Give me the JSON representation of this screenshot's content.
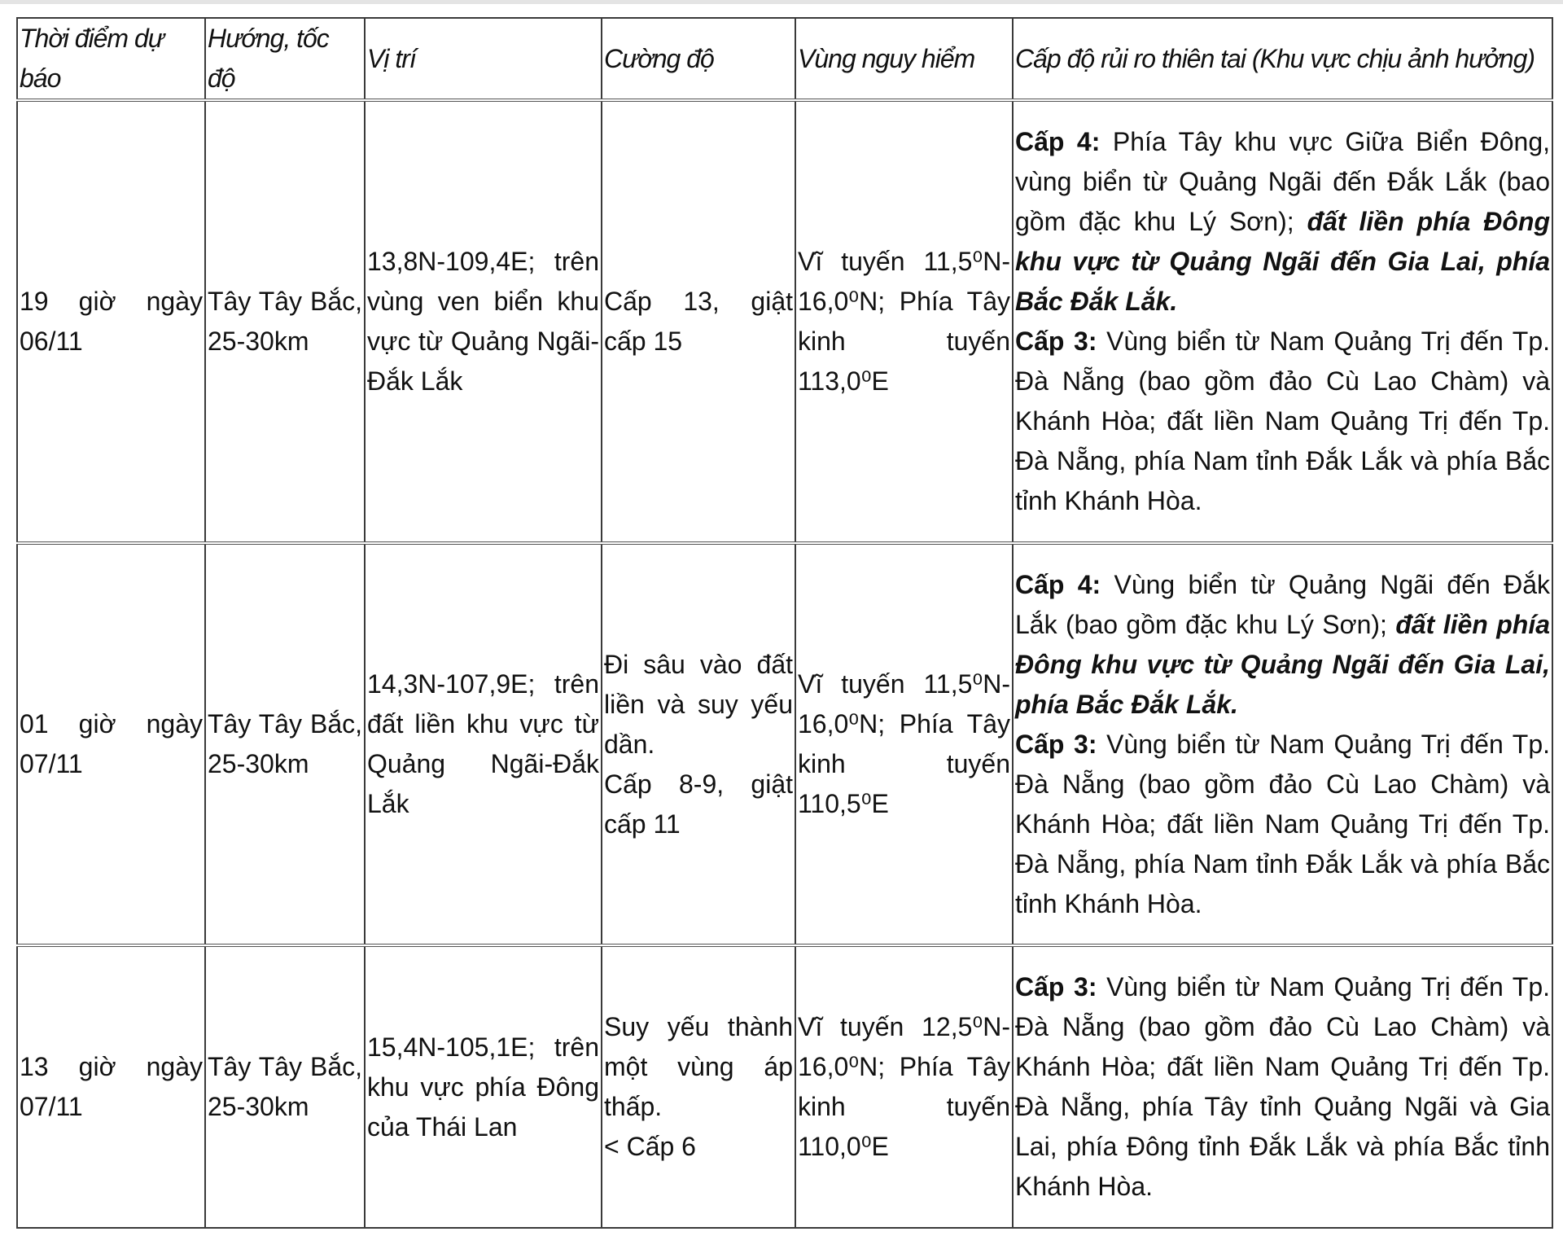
{
  "header": {
    "time": "Thời điểm dự báo",
    "direction": "Hướng, tốc độ",
    "position": "Vị trí",
    "intensity": "Cường độ",
    "danger_zone": "Vùng nguy hiểm",
    "risk": "Cấp độ rủi ro thiên tai (Khu vực chịu ảnh hưởng)"
  },
  "rows": [
    {
      "time": "19 giờ ngày 06/11",
      "direction": "Tây Tây Bắc, 25-30km",
      "position": "13,8N-109,4E; trên vùng ven biển khu vực từ Quảng Ngãi-Đắk Lắk",
      "intensity": "Cấp 13, giật cấp 15",
      "danger_zone": "Vĩ tuyến 11,5⁰N-16,0⁰N; Phía Tây kinh tuyến 113,0⁰E",
      "risk": [
        {
          "style": "b",
          "text": "Cấp 4:"
        },
        {
          "style": "n",
          "text": " Phía Tây khu vực Giữa Biển Đông, vùng biển từ Quảng Ngãi đến Đắk Lắk (bao gồm đặc khu Lý Sơn); "
        },
        {
          "style": "bi",
          "text": "đất liền phía Đông khu vực từ Quảng Ngãi đến Gia Lai, phía Bắc Đắk Lắk."
        },
        {
          "style": "b",
          "text": "\n Cấp 3:"
        },
        {
          "style": "n",
          "text": " Vùng biển từ Nam Quảng Trị đến Tp. Đà Nẵng (bao gồm đảo Cù Lao Chàm) và Khánh Hòa; đất liền Nam Quảng Trị đến Tp. Đà Nẵng, phía Nam tỉnh Đắk Lắk và phía Bắc tỉnh Khánh Hòa."
        }
      ]
    },
    {
      "time": "01 giờ ngày 07/11",
      "direction": "Tây Tây Bắc, 25-30km",
      "position": "14,3N-107,9E; trên đất liền khu vực từ Quảng Ngãi-Đắk Lắk",
      "intensity": "Đi sâu vào đất liền và suy yếu dần.\n Cấp 8-9, giật cấp 11",
      "danger_zone": "Vĩ tuyến 11,5⁰N-16,0⁰N; Phía Tây kinh tuyến 110,5⁰E",
      "risk": [
        {
          "style": "b",
          "text": "Cấp 4:"
        },
        {
          "style": "n",
          "text": " Vùng biển từ Quảng Ngãi đến Đắk Lắk (bao gồm đặc khu Lý Sơn); "
        },
        {
          "style": "bi",
          "text": "đất liền phía Đông khu vực từ Quảng Ngãi đến Gia Lai, phía Bắc Đắk Lắk."
        },
        {
          "style": "b",
          "text": "\n Cấp 3:"
        },
        {
          "style": "n",
          "text": " Vùng biển từ Nam Quảng Trị đến Tp. Đà Nẵng (bao gồm đảo Cù Lao Chàm) và Khánh Hòa; đất liền Nam Quảng Trị đến Tp. Đà Nẵng, phía Nam tỉnh Đắk Lắk và phía Bắc tỉnh Khánh Hòa."
        }
      ]
    },
    {
      "time": "13 giờ ngày 07/11",
      "direction": "Tây Tây Bắc, 25-30km",
      "position": "15,4N-105,1E; trên khu vực phía Đông của Thái Lan",
      "intensity": "Suy yếu thành một vùng áp thấp.\n< Cấp 6",
      "danger_zone": "Vĩ tuyến 12,5⁰N-16,0⁰N; Phía Tây kinh tuyến 110,0⁰E",
      "risk": [
        {
          "style": "b",
          "text": "Cấp 3:"
        },
        {
          "style": "n",
          "text": " Vùng biển từ Nam Quảng Trị đến Tp. Đà Nẵng (bao gồm đảo Cù Lao Chàm) và Khánh Hòa; đất liền Nam Quảng Trị đến Tp. Đà Nẵng, phía Tây tỉnh Quảng Ngãi và Gia Lai, phía Đông tỉnh Đắk Lắk và phía Bắc tỉnh Khánh Hòa."
        }
      ]
    }
  ]
}
